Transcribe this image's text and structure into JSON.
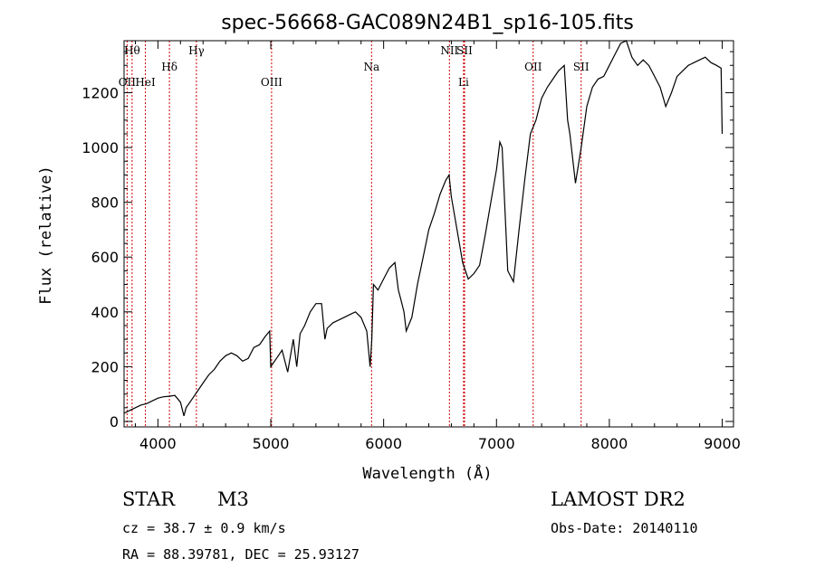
{
  "chart_data": {
    "type": "line",
    "title": "spec-56668-GAC089N24B1_sp16-105.fits",
    "xlabel": "Wavelength (Å)",
    "ylabel": "Flux (relative)",
    "xlim": [
      3700,
      9100
    ],
    "ylim": [
      -20,
      1390
    ],
    "xticks": [
      4000,
      5000,
      6000,
      7000,
      8000,
      9000
    ],
    "yticks": [
      0,
      200,
      400,
      600,
      800,
      1000,
      1200
    ],
    "series": [
      {
        "x": [
          3700,
          3750,
          3800,
          3850,
          3900,
          3950,
          4000,
          4050,
          4100,
          4150,
          4200,
          4230,
          4250,
          4300,
          4350,
          4400,
          4450,
          4500,
          4550,
          4600,
          4650,
          4700,
          4750,
          4800,
          4850,
          4900,
          4950,
          4990,
          5000,
          5050,
          5100,
          5150,
          5200,
          5230,
          5260,
          5300,
          5350,
          5400,
          5450,
          5480,
          5500,
          5550,
          5600,
          5650,
          5700,
          5750,
          5800,
          5850,
          5880,
          5895,
          5910,
          5950,
          6000,
          6050,
          6100,
          6130,
          6150,
          6180,
          6200,
          6250,
          6300,
          6350,
          6400,
          6450,
          6500,
          6550,
          6580,
          6600,
          6650,
          6700,
          6750,
          6800,
          6850,
          6900,
          6950,
          7000,
          7030,
          7050,
          7100,
          7150,
          7200,
          7250,
          7300,
          7350,
          7400,
          7450,
          7500,
          7550,
          7600,
          7630,
          7650,
          7700,
          7750,
          7800,
          7850,
          7900,
          7950,
          8000,
          8050,
          8100,
          8150,
          8200,
          8250,
          8300,
          8350,
          8400,
          8450,
          8500,
          8550,
          8600,
          8650,
          8700,
          8750,
          8800,
          8850,
          8900,
          8950,
          8990,
          9000
        ],
        "y": [
          30,
          40,
          50,
          60,
          65,
          75,
          85,
          90,
          92,
          95,
          70,
          20,
          50,
          80,
          110,
          140,
          170,
          190,
          220,
          240,
          250,
          240,
          220,
          230,
          270,
          280,
          310,
          330,
          200,
          230,
          260,
          180,
          300,
          200,
          320,
          350,
          400,
          430,
          430,
          300,
          340,
          360,
          370,
          380,
          390,
          400,
          380,
          330,
          200,
          300,
          500,
          480,
          520,
          560,
          580,
          480,
          450,
          400,
          330,
          380,
          500,
          600,
          700,
          760,
          830,
          880,
          900,
          820,
          700,
          580,
          520,
          540,
          570,
          680,
          800,
          920,
          1020,
          1000,
          550,
          510,
          700,
          880,
          1050,
          1100,
          1180,
          1220,
          1250,
          1280,
          1300,
          1100,
          1050,
          870,
          1000,
          1150,
          1220,
          1250,
          1260,
          1300,
          1340,
          1380,
          1390,
          1330,
          1300,
          1320,
          1300,
          1260,
          1220,
          1150,
          1200,
          1260,
          1280,
          1300,
          1310,
          1320,
          1330,
          1310,
          1300,
          1290,
          1050
        ]
      }
    ],
    "line_markers": [
      {
        "label": "Hθ",
        "x": 3771,
        "row": 0
      },
      {
        "label": "OII",
        "x": 3727,
        "row": 1
      },
      {
        "label": "HeI",
        "x": 3889,
        "row": 1
      },
      {
        "label": "Hδ",
        "x": 4102,
        "row": 2
      },
      {
        "label": "Hγ",
        "x": 4341,
        "row": 0
      },
      {
        "label": "OIII",
        "x": 5007,
        "row": 1
      },
      {
        "label": "Na",
        "x": 5893,
        "row": 2
      },
      {
        "label": "NII",
        "x": 6583,
        "row": 0
      },
      {
        "label": "SII",
        "x": 6717,
        "row": 0
      },
      {
        "label": "Li",
        "x": 6708,
        "row": 1
      },
      {
        "label": "OII",
        "x": 7325,
        "row": 2
      },
      {
        "label": "SII",
        "x": 7750,
        "row": 2
      }
    ],
    "grid": false
  },
  "info": {
    "class": "STAR",
    "subclass": "M3",
    "survey": "LAMOST DR2",
    "cz": "cz = 38.7 ± 0.9 km/s",
    "obs_date": "Obs-Date: 20140110",
    "radec": "RA =  88.39781, DEC =  25.93127"
  },
  "colors": {
    "axes": "#000000",
    "marker": "#cc0000",
    "spectrum": "#000000"
  }
}
